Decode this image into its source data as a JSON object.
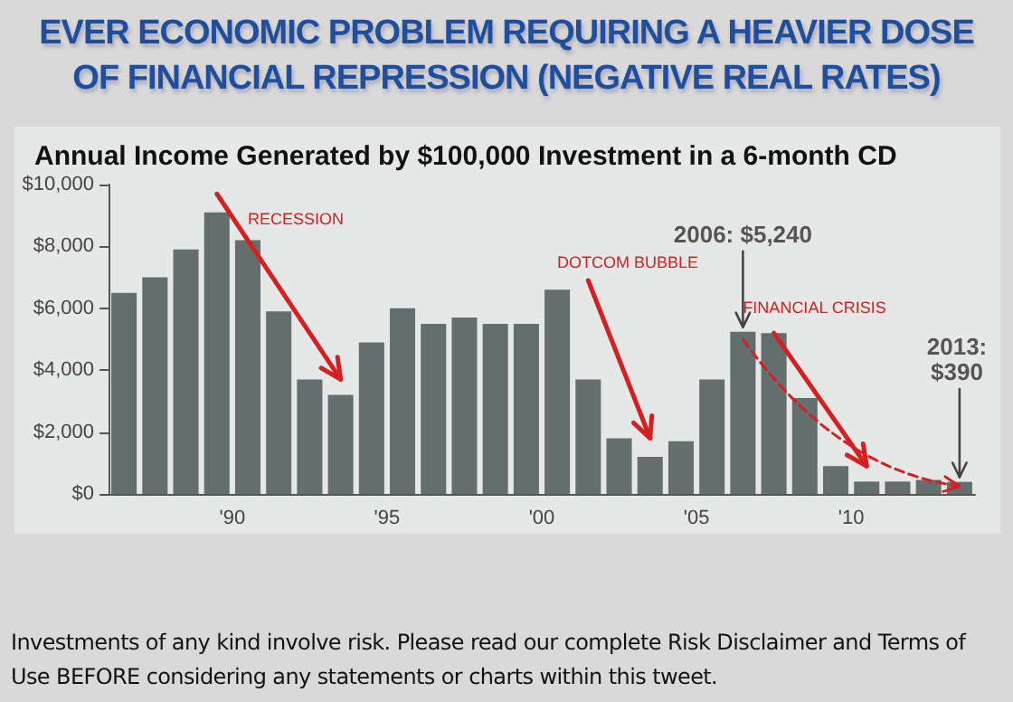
{
  "chart_data": {
    "type": "bar",
    "title": "EVER ECONOMIC PROBLEM REQUIRING A HEAVIER DOSE OF FINANCIAL REPRESSION (NEGATIVE REAL RATES)",
    "subtitle": "Annual Income Generated by $100,000 Investment in a 6-month CD",
    "categories": [
      null,
      null,
      null,
      null,
      "'90",
      null,
      null,
      null,
      null,
      "'95",
      null,
      null,
      null,
      null,
      "'00",
      null,
      null,
      null,
      null,
      "'05",
      null,
      null,
      null,
      null,
      "'10",
      null,
      null,
      null
    ],
    "values": [
      6500,
      7000,
      7900,
      9100,
      8200,
      5900,
      3700,
      3200,
      4900,
      6000,
      5500,
      5700,
      5500,
      5500,
      6600,
      3700,
      1800,
      1200,
      1700,
      3700,
      5240,
      5200,
      3100,
      900,
      400,
      400,
      450,
      390
    ],
    "color": "#656e6e",
    "ylim": [
      0,
      10000
    ],
    "yticks": [
      {
        "value": 0,
        "label": "$0"
      },
      {
        "value": 2000,
        "label": "$2,000"
      },
      {
        "value": 4000,
        "label": "$4,000"
      },
      {
        "value": 6000,
        "label": "$6,000"
      },
      {
        "value": 8000,
        "label": "$8,000"
      },
      {
        "value": 10000,
        "label": "$10,000"
      }
    ],
    "annotations": [
      "RECESSION",
      "DOTCOM BUBBLE",
      "FINANCIAL CRISIS",
      {
        "text": "2006: $5,240",
        "y": 5240
      },
      {
        "text": "2013: $390",
        "y": 390
      },
      "Investments of any kind involve risk. Please read our complete Risk Disclaimer and Terms of Use BEFORE considering any statements or charts within this tweet."
    ]
  }
}
